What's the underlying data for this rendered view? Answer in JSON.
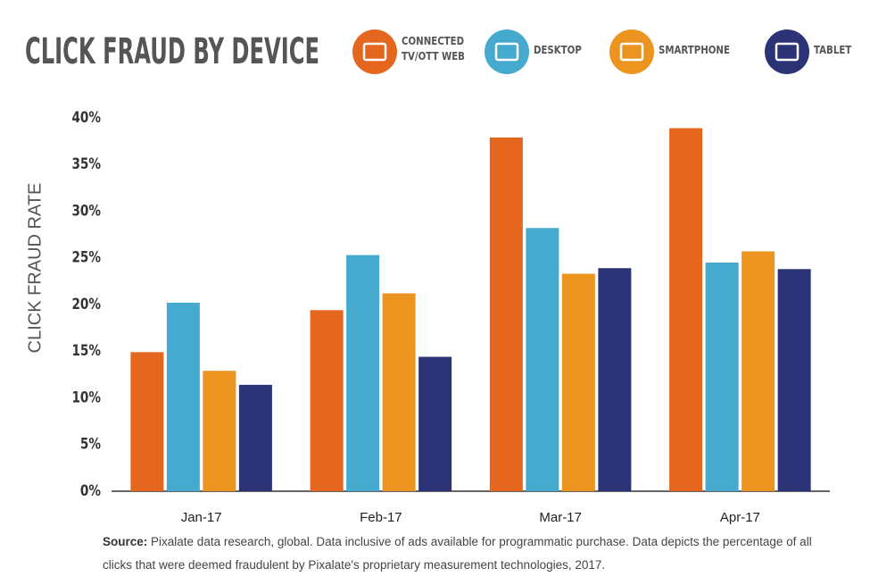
{
  "chart_data": {
    "type": "bar",
    "title": "CLICK FRAUD BY DEVICE",
    "y_label": "CLICK FRAUD RATE",
    "categories": [
      "Jan-17",
      "Feb-17",
      "Mar-17",
      "Apr-17"
    ],
    "series": [
      {
        "name": "CONNECTED TV/OTT WEB",
        "color": "#e4661f",
        "values": [
          14.9,
          19.4,
          37.9,
          38.9
        ]
      },
      {
        "name": "DESKTOP",
        "color": "#45aacd",
        "values": [
          20.2,
          25.3,
          28.2,
          24.5
        ]
      },
      {
        "name": "SMARTPHONE",
        "color": "#eb9420",
        "values": [
          12.9,
          21.2,
          23.3,
          25.7
        ]
      },
      {
        "name": "TABLET",
        "color": "#2b3275",
        "values": [
          11.4,
          14.4,
          23.9,
          23.8
        ]
      }
    ],
    "ylim": [
      0,
      40
    ],
    "yticks": [
      {
        "value": 0,
        "label": "0%"
      },
      {
        "value": 5,
        "label": "5%"
      },
      {
        "value": 10,
        "label": "10%"
      },
      {
        "value": 15,
        "label": "15%"
      },
      {
        "value": 20,
        "label": "20%"
      },
      {
        "value": 25,
        "label": "25%"
      },
      {
        "value": 30,
        "label": "30%"
      },
      {
        "value": 35,
        "label": "35%"
      },
      {
        "value": 40,
        "label": "40%"
      }
    ],
    "grid": false,
    "source_label": "Source:",
    "source": "Pixalate data research, global. Data inclusive of ads available for programmatic purchase. Data depicts the percentage of all clicks that were deemed fraudulent by Pixalate's proprietary measurement technologies, 2017."
  }
}
